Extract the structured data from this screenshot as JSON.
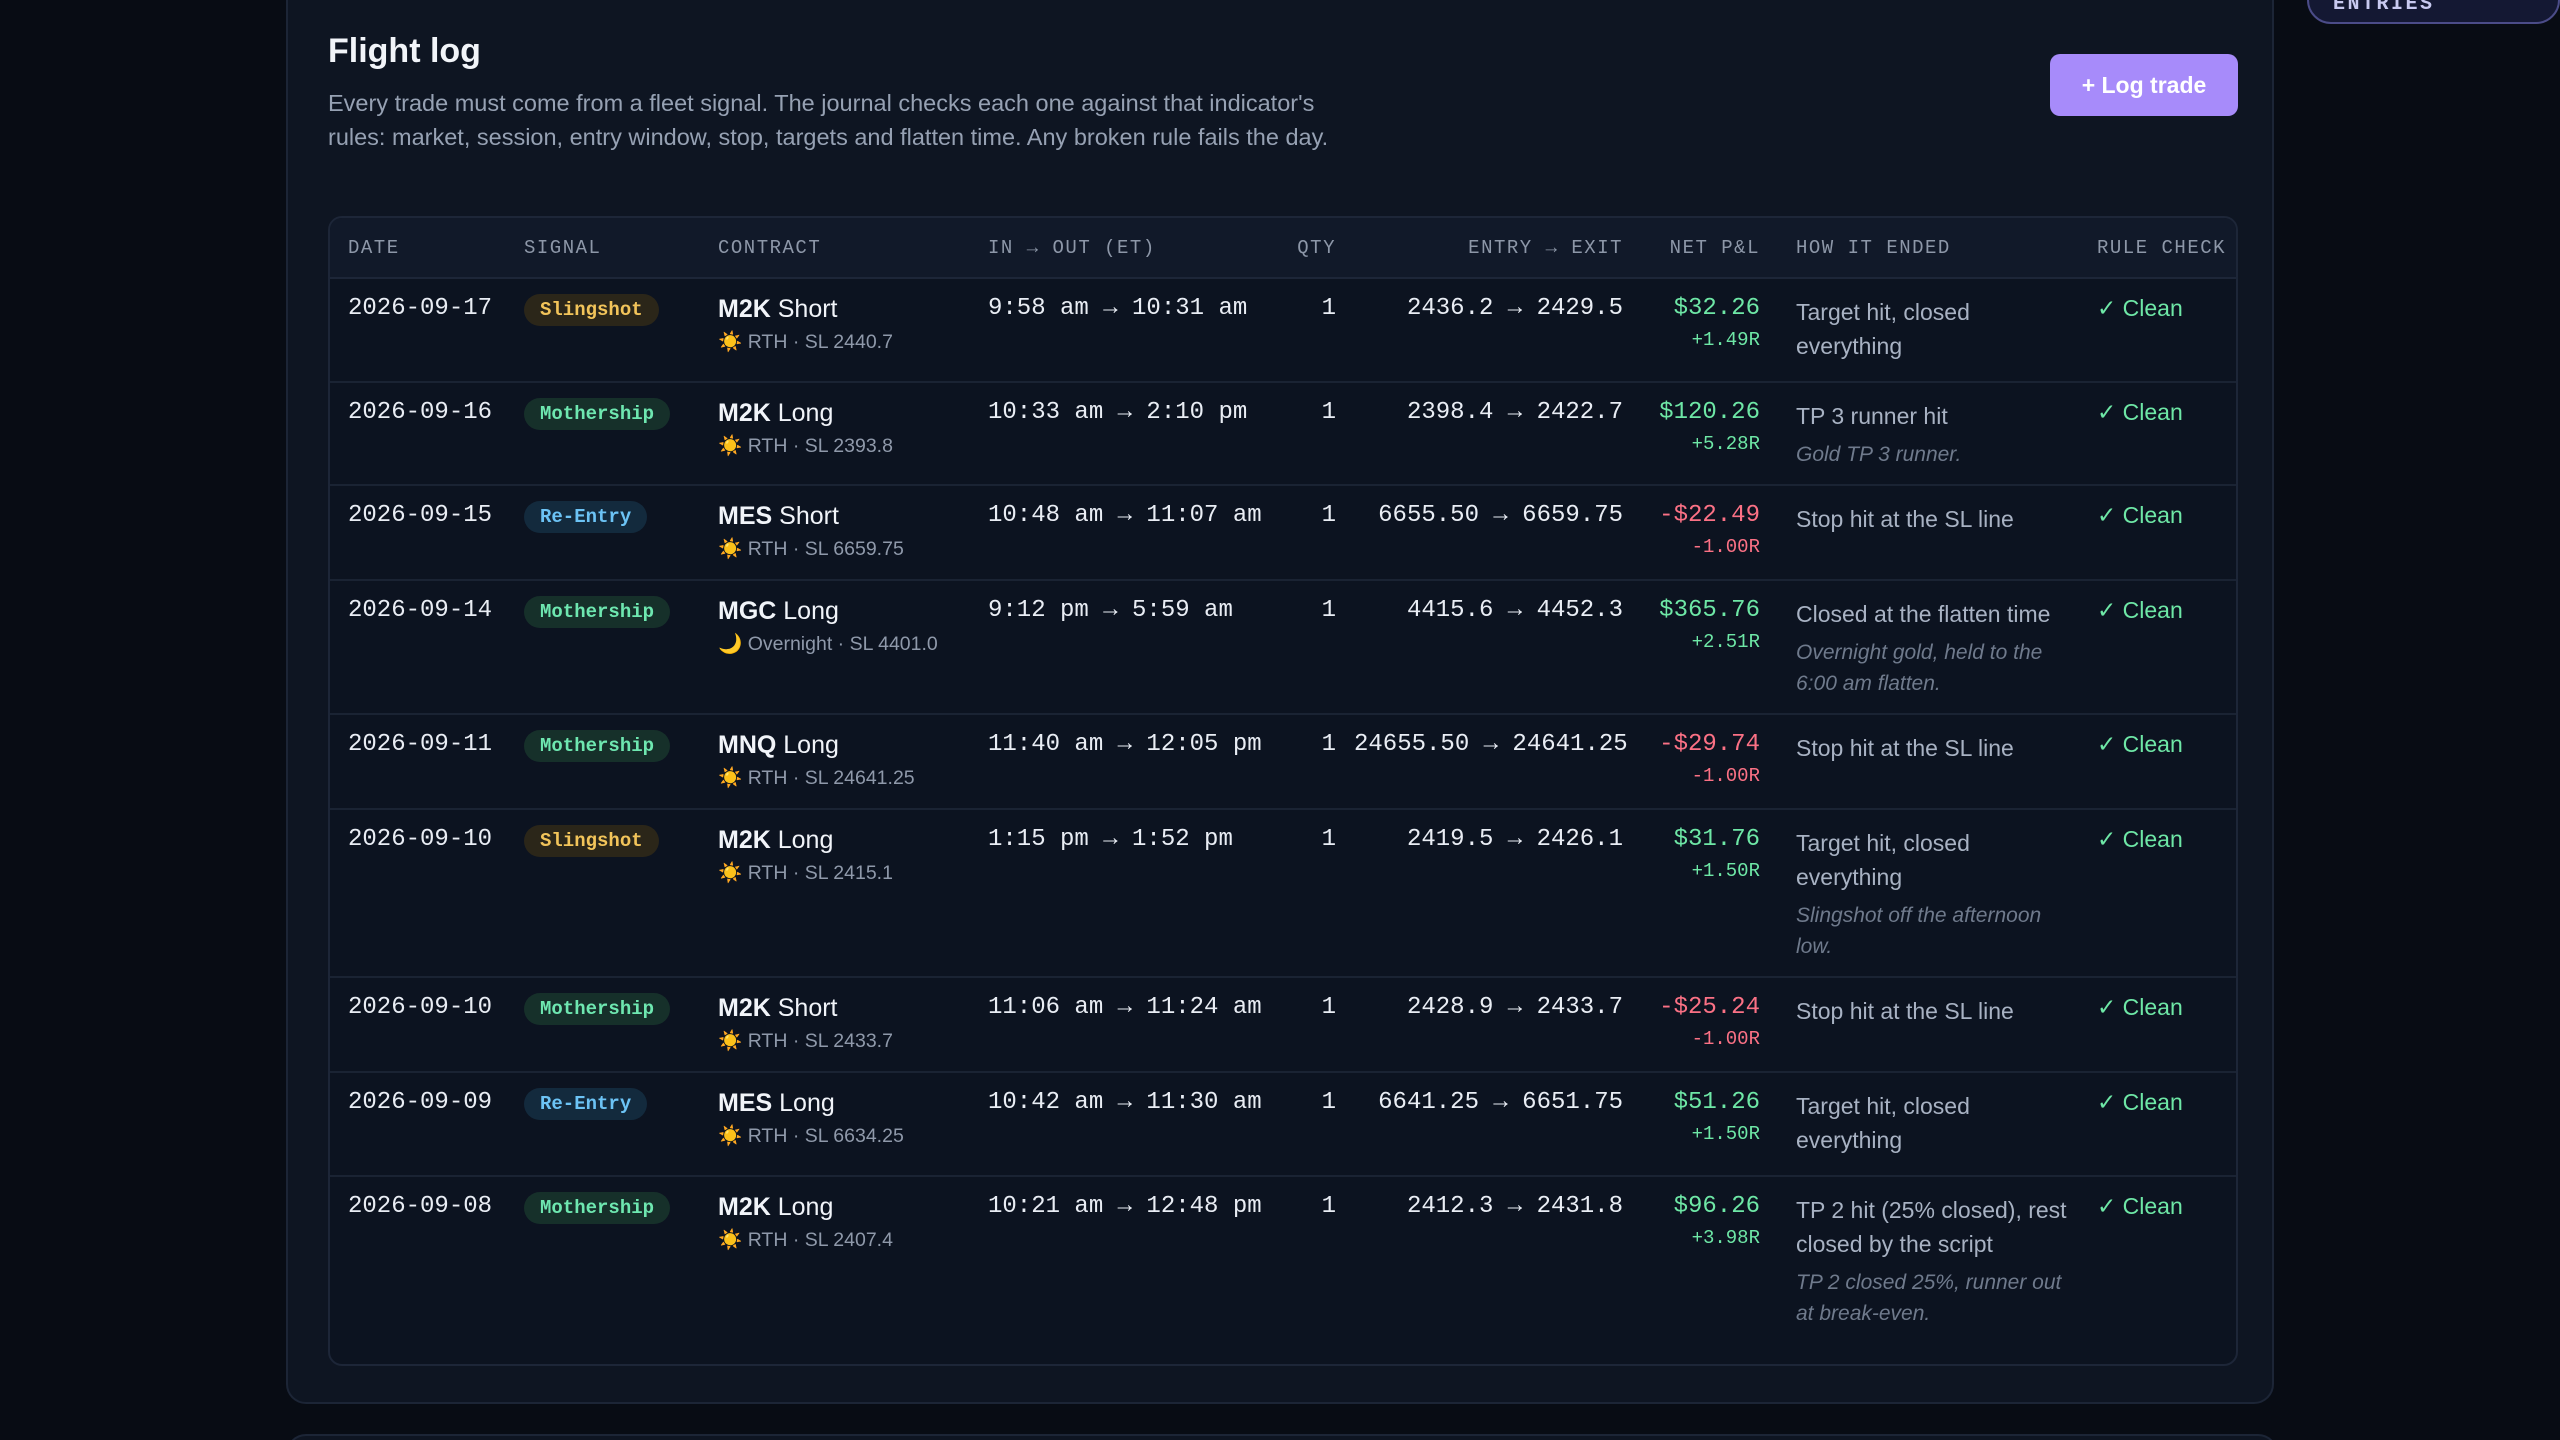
{
  "sample_badge": "SAMPLE ENTRIES",
  "title": "Flight log",
  "description": "Every trade must come from a fleet signal. The journal checks each one against that indicator's rules: market, session, entry window, stop, targets and flatten time. Any broken rule fails the day.",
  "log_button": "+ Log trade",
  "columns": {
    "date": "DATE",
    "signal": "SIGNAL",
    "contract": "CONTRACT",
    "inout": "IN → OUT (ET)",
    "qty": "QTY",
    "entryexit": "ENTRY → EXIT",
    "pnl": "NET P&L",
    "how": "HOW IT ENDED",
    "rule": "RULE CHECK"
  },
  "colors": {
    "accent": "#a78bfa",
    "positive": "#6ee7a6",
    "negative": "#fb7185",
    "slingshot": "#f2c45a",
    "mothership": "#6ee7b0",
    "reentry": "#6cc3f5"
  },
  "trades": [
    {
      "date": "2026-09-17",
      "signal": "Slingshot",
      "signal_kind": "slingshot",
      "symbol": "M2K",
      "side": "Short",
      "session_icon": "sun-icon",
      "session_glyph": "☀️",
      "session_meta": "RTH · SL 2440.7",
      "inout": "9:58 am → 10:31 am",
      "qty": "1",
      "entryexit": "2436.2 → 2429.5",
      "pnl": "$32.26",
      "r": "+1.49R",
      "positive": true,
      "how": "Target hit, closed everything",
      "note": "",
      "rule": "✓ Clean"
    },
    {
      "date": "2026-09-16",
      "signal": "Mothership",
      "signal_kind": "mothership",
      "symbol": "M2K",
      "side": "Long",
      "session_icon": "sun-icon",
      "session_glyph": "☀️",
      "session_meta": "RTH · SL 2393.8",
      "inout": "10:33 am → 2:10 pm",
      "qty": "1",
      "entryexit": "2398.4 → 2422.7",
      "pnl": "$120.26",
      "r": "+5.28R",
      "positive": true,
      "how": "TP 3 runner hit",
      "note": "Gold TP 3 runner.",
      "rule": "✓ Clean"
    },
    {
      "date": "2026-09-15",
      "signal": "Re-Entry",
      "signal_kind": "reentry",
      "symbol": "MES",
      "side": "Short",
      "session_icon": "sun-icon",
      "session_glyph": "☀️",
      "session_meta": "RTH · SL 6659.75",
      "inout": "10:48 am → 11:07 am",
      "qty": "1",
      "entryexit": "6655.50 → 6659.75",
      "pnl": "-$22.49",
      "r": "-1.00R",
      "positive": false,
      "how": "Stop hit at the SL line",
      "note": "",
      "rule": "✓ Clean"
    },
    {
      "date": "2026-09-14",
      "signal": "Mothership",
      "signal_kind": "mothership",
      "symbol": "MGC",
      "side": "Long",
      "session_icon": "moon-icon",
      "session_glyph": "🌙",
      "session_meta": "Overnight · SL 4401.0",
      "inout": "9:12 pm → 5:59 am",
      "qty": "1",
      "entryexit": "4415.6 → 4452.3",
      "pnl": "$365.76",
      "r": "+2.51R",
      "positive": true,
      "how": "Closed at the flatten time",
      "note": "Overnight gold, held to the 6:00 am flatten.",
      "rule": "✓ Clean"
    },
    {
      "date": "2026-09-11",
      "signal": "Mothership",
      "signal_kind": "mothership",
      "symbol": "MNQ",
      "side": "Long",
      "session_icon": "sun-icon",
      "session_glyph": "☀️",
      "session_meta": "RTH · SL 24641.25",
      "inout": "11:40 am → 12:05 pm",
      "qty": "1",
      "entryexit": "24655.50 → 24641.25",
      "pnl": "-$29.74",
      "r": "-1.00R",
      "positive": false,
      "how": "Stop hit at the SL line",
      "note": "",
      "rule": "✓ Clean"
    },
    {
      "date": "2026-09-10",
      "signal": "Slingshot",
      "signal_kind": "slingshot",
      "symbol": "M2K",
      "side": "Long",
      "session_icon": "sun-icon",
      "session_glyph": "☀️",
      "session_meta": "RTH · SL 2415.1",
      "inout": "1:15 pm → 1:52 pm",
      "qty": "1",
      "entryexit": "2419.5 → 2426.1",
      "pnl": "$31.76",
      "r": "+1.50R",
      "positive": true,
      "how": "Target hit, closed everything",
      "note": "Slingshot off the afternoon low.",
      "rule": "✓ Clean"
    },
    {
      "date": "2026-09-10",
      "signal": "Mothership",
      "signal_kind": "mothership",
      "symbol": "M2K",
      "side": "Short",
      "session_icon": "sun-icon",
      "session_glyph": "☀️",
      "session_meta": "RTH · SL 2433.7",
      "inout": "11:06 am → 11:24 am",
      "qty": "1",
      "entryexit": "2428.9 → 2433.7",
      "pnl": "-$25.24",
      "r": "-1.00R",
      "positive": false,
      "how": "Stop hit at the SL line",
      "note": "",
      "rule": "✓ Clean"
    },
    {
      "date": "2026-09-09",
      "signal": "Re-Entry",
      "signal_kind": "reentry",
      "symbol": "MES",
      "side": "Long",
      "session_icon": "sun-icon",
      "session_glyph": "☀️",
      "session_meta": "RTH · SL 6634.25",
      "inout": "10:42 am → 11:30 am",
      "qty": "1",
      "entryexit": "6641.25 → 6651.75",
      "pnl": "$51.26",
      "r": "+1.50R",
      "positive": true,
      "how": "Target hit, closed everything",
      "note": "",
      "rule": "✓ Clean"
    },
    {
      "date": "2026-09-08",
      "signal": "Mothership",
      "signal_kind": "mothership",
      "symbol": "M2K",
      "side": "Long",
      "session_icon": "sun-icon",
      "session_glyph": "☀️",
      "session_meta": "RTH · SL 2407.4",
      "inout": "10:21 am → 12:48 pm",
      "qty": "1",
      "entryexit": "2412.3 → 2431.8",
      "pnl": "$96.26",
      "r": "+3.98R",
      "positive": true,
      "how": "TP 2 hit (25% closed), rest closed by the script",
      "note": "TP 2 closed 25%, runner out at break-even.",
      "rule": "✓ Clean"
    }
  ]
}
